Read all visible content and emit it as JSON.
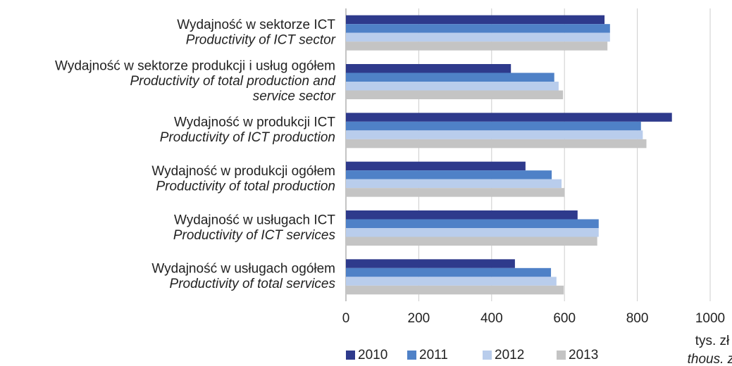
{
  "chart_data": {
    "type": "hbar",
    "categories": [
      "Wydajność w sektorze ICT",
      "Wydajność w sektorze produkcji i usług ogółem",
      "Wydajność w produkcji ICT",
      "Wydajność w produkcji ogółem",
      "Wydajność w usługach ICT",
      "Wydajność w usługach ogółem"
    ],
    "categories_en": [
      [
        "Productivity of ICT sector"
      ],
      [
        "Productivity of total production and",
        "service sector"
      ],
      [
        "Productivity of ICT production"
      ],
      [
        "Productivity of total production"
      ],
      [
        "Productivity of ICT services"
      ],
      [
        "Productivity of total services"
      ]
    ],
    "series": [
      {
        "name": "2010",
        "color": "#2e3a8c",
        "values": [
          710,
          453,
          895,
          493,
          636,
          464
        ]
      },
      {
        "name": "2011",
        "color": "#4f81c7",
        "values": [
          725,
          572,
          810,
          565,
          694,
          563
        ]
      },
      {
        "name": "2012",
        "color": "#b9cdec",
        "values": [
          725,
          584,
          815,
          592,
          694,
          578
        ]
      },
      {
        "name": "2013",
        "color": "#c4c4c4",
        "values": [
          718,
          596,
          825,
          600,
          690,
          598
        ]
      }
    ],
    "xlim": [
      0,
      1000
    ],
    "xticks": [
      0,
      200,
      400,
      600,
      800,
      1000
    ],
    "x_unit": "tys. zł",
    "x_unit_en": "thous. zl",
    "grid": true
  }
}
